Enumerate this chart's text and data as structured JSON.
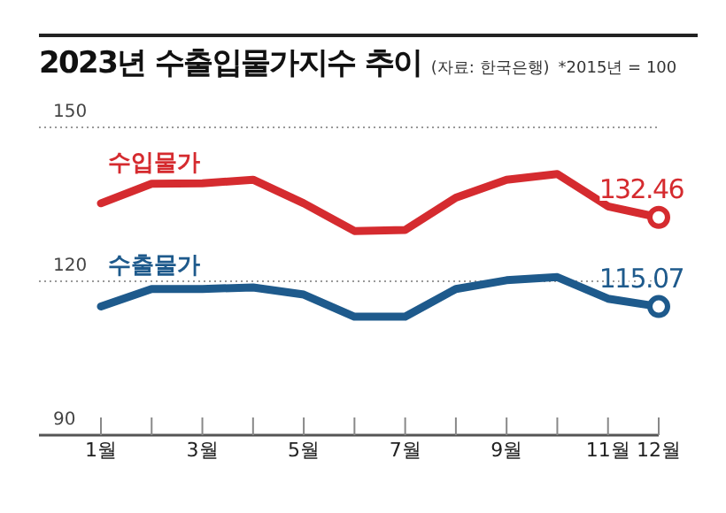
{
  "chart_data": {
    "type": "line",
    "title": "2023년 수출입물가지수 추이",
    "subtitle": "(자료: 한국은행)",
    "annotations": [
      "*2015년 = 100"
    ],
    "categories": [
      "1월",
      null,
      "3월",
      null,
      "5월",
      null,
      "7월",
      null,
      "9월",
      null,
      "11월",
      "12월"
    ],
    "series": [
      {
        "name": "수입물가",
        "color": "#d52b2f",
        "values": [
          135.2,
          139.0,
          139.1,
          139.8,
          135.2,
          129.8,
          130.0,
          136.3,
          139.8,
          140.9,
          134.6,
          132.46
        ],
        "value_labels": [
          null,
          null,
          null,
          null,
          null,
          null,
          null,
          null,
          null,
          null,
          null,
          "132.46"
        ]
      },
      {
        "name": "수출물가",
        "color": "#1e5a8c",
        "values": [
          115.1,
          118.5,
          118.5,
          118.8,
          117.4,
          113.1,
          113.1,
          118.5,
          120.2,
          120.8,
          116.6,
          115.07
        ],
        "value_labels": [
          null,
          null,
          null,
          null,
          null,
          null,
          null,
          null,
          null,
          null,
          null,
          "115.07"
        ]
      }
    ],
    "ylim": [
      90,
      150
    ],
    "yticks": [
      90,
      120,
      150
    ],
    "grid": "y",
    "line_style": "solid"
  }
}
